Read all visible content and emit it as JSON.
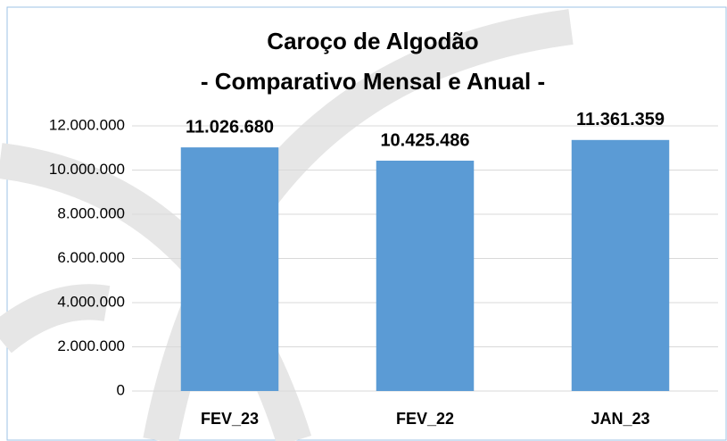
{
  "chart_data": {
    "type": "bar",
    "title": "Caroço de Algodão",
    "subtitle": "- Comparativo Mensal e Anual -",
    "categories": [
      "FEV_23",
      "FEV_22",
      "JAN_23"
    ],
    "values": [
      11026680,
      10425486,
      11361359
    ],
    "value_labels": [
      "11.026.680",
      "10.425.486",
      "11.361.359"
    ],
    "color": "#5b9bd5",
    "ylim": [
      0,
      12000000
    ],
    "yticks": [
      0,
      {
        "value": 2000000,
        "label": "2.000.000"
      },
      {
        "value": 4000000,
        "label": "4.000.000"
      },
      {
        "value": 6000000,
        "label": "6.000.000"
      },
      {
        "value": 8000000,
        "label": "8.000.000"
      },
      {
        "value": 10000000,
        "label": "10.000.000"
      },
      {
        "value": 12000000,
        "label": "12.000.000"
      }
    ],
    "grid": true
  }
}
